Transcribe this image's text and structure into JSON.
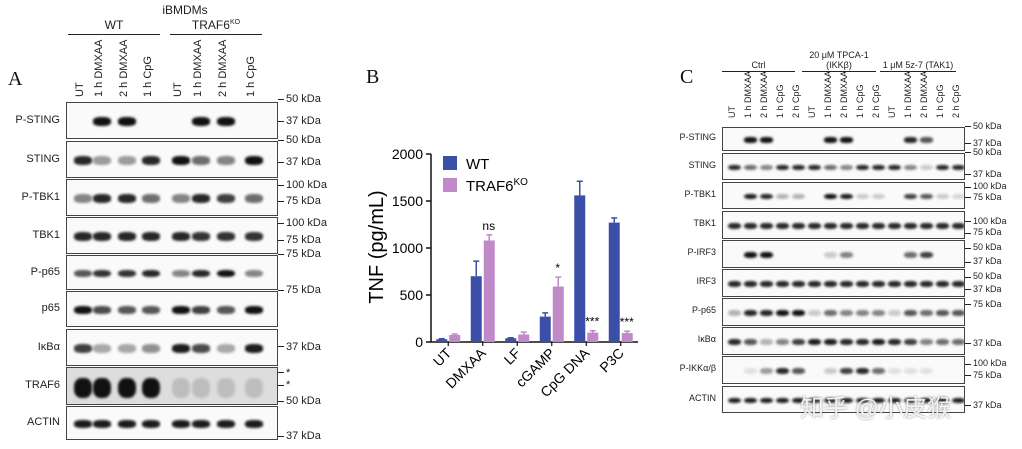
{
  "panelA": {
    "letter": "A",
    "title": "iBMDMs",
    "groups": [
      "WT",
      "TRAF6KO"
    ],
    "group_superscripts": [
      "",
      "KO"
    ],
    "group_bases": [
      "WT",
      "TRAF6"
    ],
    "lanes": [
      "UT",
      "1 h DMXAA",
      "2 h DMXAA",
      "1 h CpG",
      "UT",
      "1 h DMXAA",
      "2 h DMXAA",
      "1 h CpG"
    ],
    "rows": [
      {
        "label": "P-STING",
        "markers": [
          "50 kDa",
          "37 kDa"
        ],
        "intensity": [
          0,
          1,
          1,
          0,
          0,
          1,
          1,
          0
        ]
      },
      {
        "label": "STING",
        "markers": [
          "50 kDa",
          "37 kDa"
        ],
        "intensity": [
          0.9,
          0.4,
          0.4,
          0.9,
          1,
          0.6,
          0.5,
          1
        ]
      },
      {
        "label": "P-TBK1",
        "markers": [
          "100 kDa",
          "75 kDa"
        ],
        "intensity": [
          0.5,
          0.9,
          0.9,
          0.6,
          0.5,
          0.9,
          0.8,
          0.6
        ]
      },
      {
        "label": "TBK1",
        "markers": [
          "100 kDa",
          "75 kDa"
        ],
        "intensity": [
          0.9,
          0.9,
          0.9,
          0.9,
          0.9,
          0.85,
          0.85,
          0.85
        ]
      },
      {
        "label": "P-p65",
        "markers": [
          "75 kDa"
        ],
        "intensity": [
          0.7,
          0.85,
          0.85,
          0.9,
          0.5,
          0.9,
          1,
          0.5
        ]
      },
      {
        "label": "p65",
        "markers": [
          "75 kDa"
        ],
        "intensity": [
          1,
          0.75,
          0.7,
          0.7,
          1,
          0.8,
          0.7,
          1
        ]
      },
      {
        "label": "IκBα",
        "markers": [
          "37 kDa"
        ],
        "intensity": [
          0.8,
          0.35,
          0.35,
          0.45,
          0.95,
          0.75,
          0.35,
          0.95
        ]
      },
      {
        "label": "TRAF6",
        "markers": [
          "*",
          "*",
          "50 kDa"
        ],
        "intensity": [
          1,
          1,
          1,
          1,
          0.15,
          0.15,
          0.15,
          0.15
        ]
      },
      {
        "label": "ACTIN",
        "markers": [
          "37 kDa"
        ],
        "intensity": [
          0.95,
          0.95,
          0.95,
          0.95,
          0.95,
          0.95,
          0.95,
          0.95
        ]
      }
    ]
  },
  "panelB": {
    "letter": "B"
  },
  "chart_data": {
    "type": "bar",
    "title": "",
    "xlabel": "",
    "ylabel": "TNF (pg/mL)",
    "ylim": [
      0,
      2000
    ],
    "yticks": [
      0,
      500,
      1000,
      1500,
      2000
    ],
    "categories": [
      "UT",
      "DMXAA",
      "LF",
      "cGAMP",
      "CpG DNA",
      "P3C"
    ],
    "series": [
      {
        "name": "WT",
        "color": "#3b4fa8",
        "values": [
          30,
          700,
          40,
          270,
          1560,
          1270
        ],
        "errors": [
          5,
          160,
          5,
          40,
          150,
          50
        ]
      },
      {
        "name": "TRAF6KO",
        "name_base": "TRAF6",
        "name_sup": "KO",
        "color": "#c08ac8",
        "values": [
          75,
          1080,
          80,
          590,
          100,
          95
        ],
        "errors": [
          10,
          60,
          25,
          100,
          20,
          20
        ]
      }
    ],
    "annotations": [
      "",
      "ns",
      "",
      "*",
      "***",
      "***"
    ],
    "legend": "top-left",
    "grid": false
  },
  "panelC": {
    "letter": "C",
    "groups": [
      "Ctrl",
      "20 μM TPCA-1",
      "1 μM 5z-7 (TAK1)"
    ],
    "group_sub": [
      "",
      "(IKKβ)",
      ""
    ],
    "lanes": [
      "UT",
      "1 h DMXAA",
      "2 h DMXAA",
      "1 h CpG",
      "2 h CpG",
      "UT",
      "1 h DMXAA",
      "2 h DMXAA",
      "1 h CpG",
      "2 h CpG",
      "UT",
      "1 h DMXAA",
      "2 h DMXAA",
      "1 h CpG",
      "2 h CpG"
    ],
    "rows": [
      {
        "label": "P-STING",
        "markers": [
          "50 kDa",
          "37 kDa"
        ],
        "intensity": [
          0,
          1,
          1,
          0,
          0,
          0,
          1,
          1,
          0,
          0,
          0,
          0.9,
          0.7,
          0,
          0
        ]
      },
      {
        "label": "STING",
        "markers": [
          "50 kDa",
          "37 kDa"
        ],
        "intensity": [
          0.9,
          0.6,
          0.5,
          0.9,
          0.9,
          0.9,
          0.6,
          0.5,
          0.9,
          0.9,
          0.9,
          0.5,
          0.2,
          0.9,
          0.9
        ]
      },
      {
        "label": "P-TBK1",
        "markers": [
          "100 kDa",
          "75 kDa"
        ],
        "intensity": [
          0,
          0.95,
          0.9,
          0.3,
          0.3,
          0,
          1,
          0.95,
          0.2,
          0.2,
          0,
          0.8,
          0.7,
          0.2,
          0.15
        ]
      },
      {
        "label": "TBK1",
        "markers": [
          "100 kDa",
          "75 kDa"
        ],
        "intensity": [
          0.9,
          0.9,
          0.9,
          0.9,
          0.9,
          0.9,
          0.9,
          0.9,
          0.9,
          0.9,
          0.9,
          0.9,
          0.9,
          0.9,
          0.9
        ]
      },
      {
        "label": "P-IRF3",
        "markers": [
          "50 kDa",
          "37 kDa"
        ],
        "intensity": [
          0,
          1,
          1,
          0,
          0,
          0,
          0.2,
          0.5,
          0,
          0,
          0,
          0.6,
          0.8,
          0,
          0
        ]
      },
      {
        "label": "IRF3",
        "markers": [
          "50 kDa",
          "37 kDa"
        ],
        "intensity": [
          0.9,
          0.9,
          0.9,
          0.9,
          0.9,
          0.9,
          0.9,
          0.9,
          0.9,
          0.9,
          0.9,
          0.9,
          0.9,
          0.9,
          0.9
        ]
      },
      {
        "label": "P-p65",
        "markers": [
          "75 kDa"
        ],
        "intensity": [
          0.3,
          0.9,
          0.9,
          1,
          1,
          0.2,
          0.6,
          0.5,
          0.5,
          0.5,
          0.2,
          0.7,
          0.6,
          0.7,
          0.7
        ]
      },
      {
        "label": "IκBα",
        "markers": [
          "37 kDa"
        ],
        "intensity": [
          0.9,
          0.7,
          0.3,
          0.5,
          0.8,
          0.95,
          0.95,
          0.9,
          0.9,
          0.95,
          0.9,
          0.8,
          0.5,
          0.6,
          0.6
        ]
      },
      {
        "label": "P-IKKα/β",
        "markers": [
          "100 kDa",
          "75 kDa"
        ],
        "intensity": [
          0,
          0.1,
          0.4,
          0.9,
          0.7,
          0,
          0.2,
          0.8,
          0.9,
          0.6,
          0.1,
          0.1,
          0.1,
          0,
          0
        ]
      },
      {
        "label": "ACTIN",
        "markers": [
          "37 kDa"
        ],
        "intensity": [
          0.95,
          0.95,
          0.95,
          0.95,
          0.95,
          0.95,
          0.95,
          0.95,
          0.95,
          0.95,
          0.95,
          0.95,
          0.95,
          0.95,
          0.95
        ]
      }
    ]
  },
  "watermark": "知乎 @小皮猴"
}
